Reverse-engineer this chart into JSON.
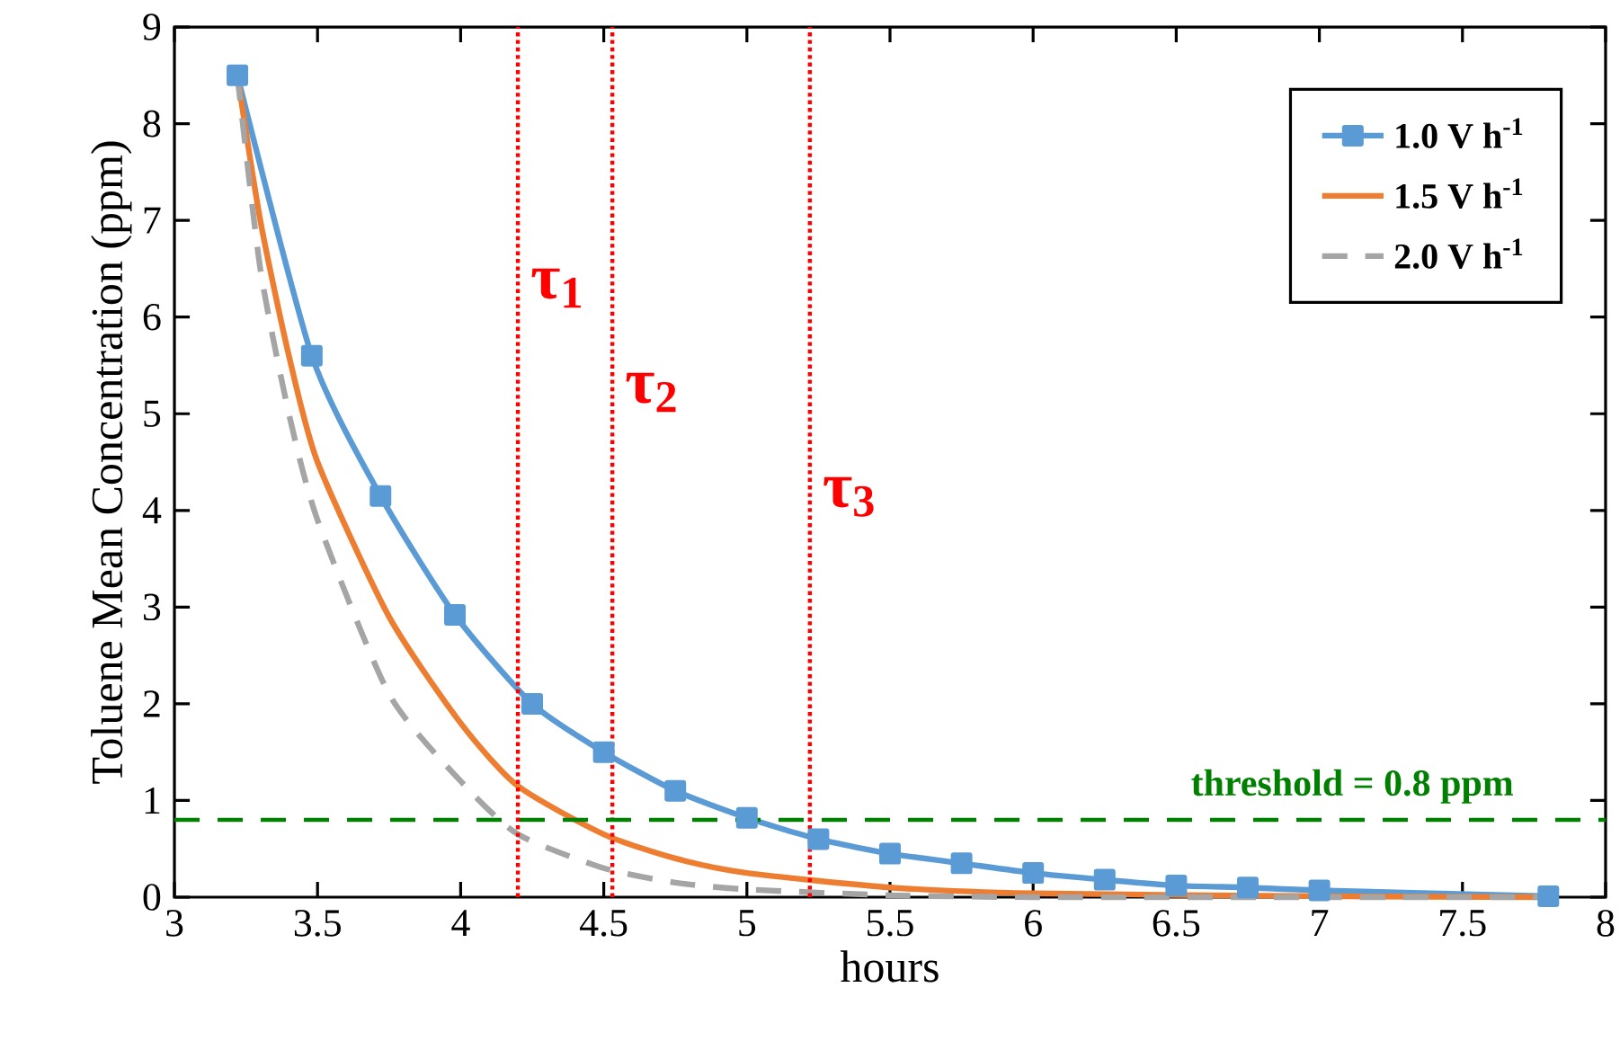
{
  "chart_data": {
    "type": "line",
    "xlabel": "hours",
    "ylabel": "Toluene  Mean Concentration (ppm)",
    "xlim": [
      3,
      8
    ],
    "ylim": [
      0,
      9
    ],
    "xticks": [
      3,
      3.5,
      4,
      4.5,
      5,
      5.5,
      6,
      6.5,
      7,
      7.5,
      8
    ],
    "yticks": [
      0,
      1,
      2,
      3,
      4,
      5,
      6,
      7,
      8,
      9
    ],
    "grid": false,
    "legend": "top right",
    "series": [
      {
        "name": "1.0  V h$^{-1}$",
        "color": "#5b9bd5",
        "marker": "square",
        "line_style": "solid",
        "x": [
          3.22,
          3.48,
          3.72,
          3.98,
          4.25,
          4.5,
          4.75,
          5.0,
          5.25,
          5.5,
          5.75,
          6.0,
          6.25,
          6.5,
          6.75,
          7.0,
          7.8
        ],
        "values": [
          8.5,
          5.6,
          4.15,
          2.92,
          2.0,
          1.5,
          1.1,
          0.82,
          0.6,
          0.45,
          0.35,
          0.25,
          0.18,
          0.12,
          0.1,
          0.07,
          0.01
        ]
      },
      {
        "name": "1.5  V h$^{-1}$",
        "color": "#ed7d31",
        "marker": "none",
        "line_style": "solid",
        "x": [
          3.22,
          3.3,
          3.4,
          3.5,
          3.75,
          4.0,
          4.2,
          4.5,
          4.75,
          5.0,
          5.5,
          6.0,
          7.0,
          7.8
        ],
        "values": [
          8.5,
          7.0,
          5.6,
          4.5,
          2.9,
          1.8,
          1.15,
          0.65,
          0.4,
          0.25,
          0.1,
          0.04,
          0.01,
          0.0
        ]
      },
      {
        "name": "2.0  V h$^{-1}$",
        "color": "#a5a5a5",
        "marker": "none",
        "line_style": "dashed",
        "x": [
          3.22,
          3.3,
          3.4,
          3.5,
          3.75,
          4.0,
          4.2,
          4.5,
          4.75,
          5.0,
          5.5,
          6.0,
          7.0,
          7.8
        ],
        "values": [
          8.5,
          6.5,
          5.0,
          3.9,
          2.1,
          1.2,
          0.65,
          0.3,
          0.15,
          0.08,
          0.02,
          0.0,
          0.0,
          0.0
        ]
      }
    ],
    "ref_lines": [
      {
        "axis": "x",
        "value": 4.2,
        "label": "τ$_{1}$",
        "color": "#ff0000",
        "line_style": "dotted"
      },
      {
        "axis": "x",
        "value": 4.53,
        "label": "τ$_{2}$",
        "color": "#ff0000",
        "line_style": "dotted"
      },
      {
        "axis": "x",
        "value": 5.22,
        "label": "τ$_{3}$",
        "color": "#ff0000",
        "line_style": "dotted"
      },
      {
        "axis": "y",
        "value": 0.8,
        "label": "threshold = 0.8 ppm",
        "color": "#008000",
        "line_style": "dashed"
      }
    ]
  }
}
